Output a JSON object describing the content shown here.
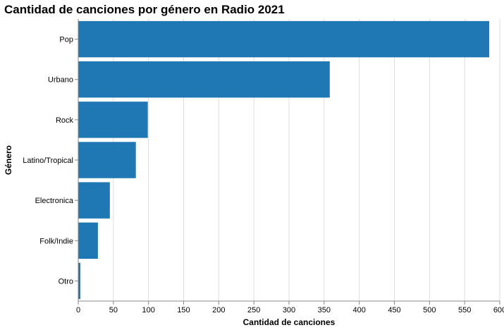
{
  "chart_data": {
    "type": "bar",
    "orientation": "horizontal",
    "title": "Cantidad de canciones por género en Radio 2021",
    "xlabel": "Cantidad de canciones",
    "ylabel": "Género",
    "categories": [
      "Pop",
      "Urbano",
      "Rock",
      "Latino/Tropical",
      "Electronica",
      "Folk/Indie",
      "Otro"
    ],
    "values": [
      585,
      358,
      99,
      82,
      45,
      28,
      3
    ],
    "xlim": [
      0,
      600
    ],
    "xticks": [
      0,
      50,
      100,
      150,
      200,
      250,
      300,
      350,
      400,
      450,
      500,
      550,
      600
    ],
    "grid": true,
    "bar_color": "#1f77b4"
  }
}
